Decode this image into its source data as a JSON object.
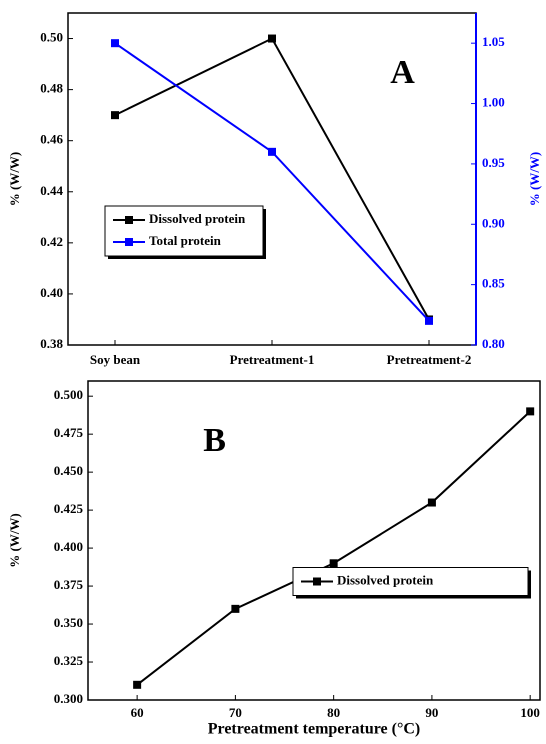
{
  "chart_data": [
    {
      "type": "line",
      "annotation": "A",
      "ylabel": "% (W/W)",
      "y2label": "% (W/W)",
      "categories": [
        "Soy bean",
        "Pretreatment-1",
        "Pretreatment-2"
      ],
      "series": [
        {
          "name": "Dissolved protein",
          "color": "#000000",
          "values": [
            0.47,
            0.5,
            0.39
          ]
        },
        {
          "name": "Total protein",
          "color": "#0000ff",
          "axis": "y2",
          "values": [
            1.05,
            0.96,
            0.82
          ]
        }
      ],
      "ylim": [
        0.38,
        0.51
      ],
      "yticks": [
        0.38,
        {
          "value": 0.4,
          "label": "0.40"
        },
        0.42,
        0.44,
        0.46,
        0.48,
        {
          "value": 0.5,
          "label": "0.50"
        }
      ],
      "y2lim": [
        0.8,
        1.075
      ],
      "y2color": "#0000ff",
      "y2ticks": [
        {
          "value": 0.8,
          "label": "0.80"
        },
        0.85,
        {
          "value": 0.9,
          "label": "0.90"
        },
        0.95,
        {
          "value": 1.0,
          "label": "1.00"
        },
        1.05
      ],
      "legend": "center-left"
    },
    {
      "type": "line",
      "annotation": "B",
      "ylabel": "% (W/W)",
      "xlabel": "Pretreatment temperature (°C)",
      "x": [
        60,
        70,
        80,
        90,
        100
      ],
      "series": [
        {
          "name": "Dissolved protein",
          "color": "#000000",
          "values": [
            0.31,
            0.36,
            0.39,
            0.43,
            0.49
          ]
        }
      ],
      "xlim": [
        55,
        101
      ],
      "xticks": [
        60,
        70,
        80,
        90,
        100
      ],
      "ylim": [
        0.3,
        0.51
      ],
      "yticks": [
        {
          "value": 0.3,
          "label": "0.300"
        },
        0.325,
        {
          "value": 0.35,
          "label": "0.350"
        },
        0.375,
        {
          "value": 0.4,
          "label": "0.400"
        },
        0.425,
        {
          "value": 0.45,
          "label": "0.450"
        },
        0.475,
        {
          "value": 0.5,
          "label": "0.500"
        }
      ],
      "legend": "center-right"
    }
  ]
}
